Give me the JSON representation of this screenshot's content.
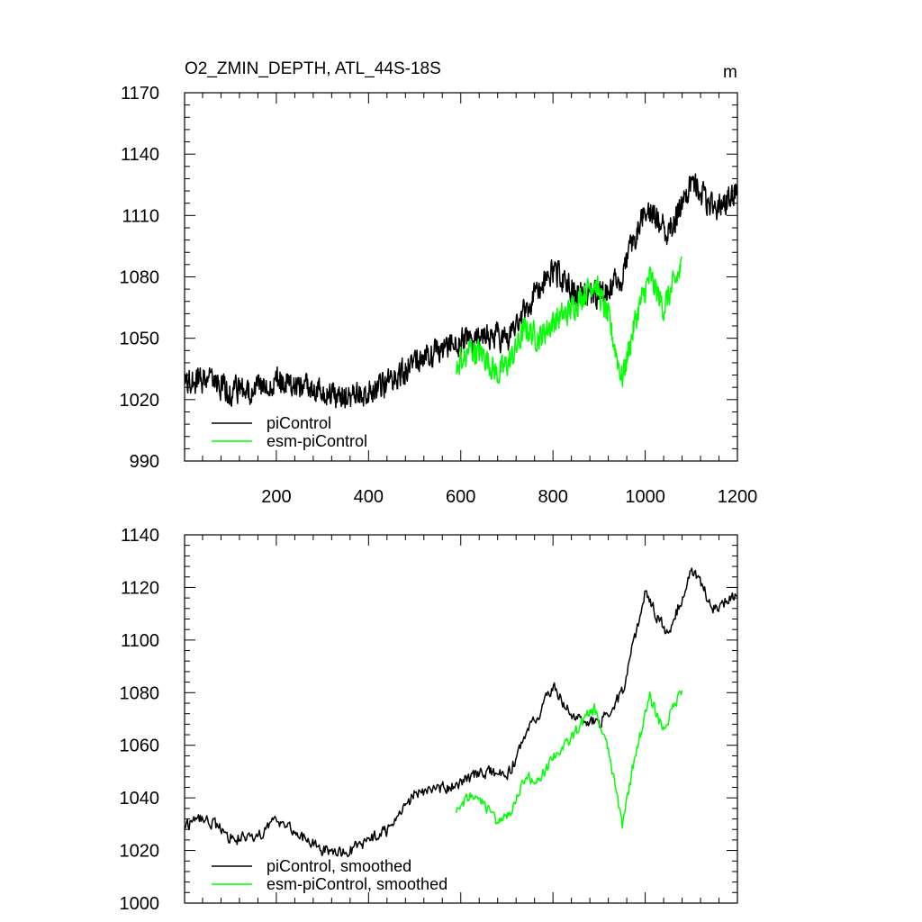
{
  "chart_data": [
    {
      "type": "line",
      "title": "O2_ZMIN_DEPTH, ATL_44S-18S",
      "unit_label": "m",
      "xlim": [
        1,
        1200
      ],
      "ylim": [
        990,
        1170
      ],
      "x_ticks": [
        200,
        400,
        600,
        800,
        1000,
        1200
      ],
      "x_tick_labels": [
        "200",
        "400",
        "600",
        "800",
        "1000",
        "1200"
      ],
      "y_ticks": [
        990,
        1020,
        1050,
        1080,
        1110,
        1140,
        1170
      ],
      "y_tick_labels": [
        "990",
        "1020",
        "1050",
        "1080",
        "1110",
        "1140",
        "1170"
      ],
      "grid": false,
      "legend_position": "bottom-left",
      "series": [
        {
          "name": "piControl",
          "color": "#000000",
          "x": [
            1,
            50,
            100,
            150,
            200,
            250,
            300,
            350,
            400,
            450,
            500,
            550,
            600,
            650,
            700,
            750,
            800,
            850,
            900,
            950,
            1000,
            1050,
            1100,
            1150,
            1200
          ],
          "values": [
            1028,
            1030,
            1024,
            1025,
            1030,
            1026,
            1023,
            1021,
            1024,
            1028,
            1040,
            1044,
            1048,
            1052,
            1050,
            1068,
            1084,
            1072,
            1070,
            1080,
            1115,
            1101,
            1127,
            1113,
            1121
          ]
        },
        {
          "name": "esm-piControl",
          "color": "#00ff00",
          "x": [
            590,
            620,
            650,
            680,
            710,
            740,
            770,
            800,
            830,
            860,
            890,
            920,
            950,
            980,
            1010,
            1040,
            1080
          ],
          "values": [
            1035,
            1045,
            1042,
            1032,
            1040,
            1055,
            1050,
            1058,
            1062,
            1070,
            1078,
            1060,
            1030,
            1060,
            1080,
            1065,
            1085
          ]
        }
      ]
    },
    {
      "type": "line",
      "xlim": [
        1,
        1200
      ],
      "ylim": [
        1000,
        1140
      ],
      "y_ticks": [
        1000,
        1020,
        1040,
        1060,
        1080,
        1100,
        1120,
        1140
      ],
      "y_tick_labels": [
        "1000",
        "1020",
        "1040",
        "1060",
        "1080",
        "1100",
        "1120",
        "1140"
      ],
      "grid": false,
      "legend_position": "bottom-left",
      "series": [
        {
          "name": "piControl, smoothed",
          "color": "#000000",
          "x": [
            1,
            50,
            100,
            150,
            200,
            250,
            300,
            350,
            400,
            450,
            500,
            550,
            600,
            650,
            700,
            750,
            800,
            850,
            900,
            950,
            1000,
            1050,
            1100,
            1150,
            1200
          ],
          "values": [
            1030,
            1032,
            1025,
            1024,
            1032,
            1026,
            1020,
            1019,
            1024,
            1028,
            1042,
            1043,
            1046,
            1050,
            1048,
            1066,
            1082,
            1070,
            1068,
            1080,
            1118,
            1101,
            1127,
            1112,
            1118
          ]
        },
        {
          "name": "esm-piControl, smoothed",
          "color": "#00ff00",
          "x": [
            590,
            620,
            650,
            680,
            710,
            740,
            770,
            800,
            830,
            860,
            890,
            920,
            950,
            980,
            1010,
            1040,
            1080
          ],
          "values": [
            1034,
            1042,
            1038,
            1030,
            1036,
            1048,
            1046,
            1056,
            1060,
            1068,
            1074,
            1058,
            1030,
            1058,
            1078,
            1066,
            1082
          ]
        }
      ]
    }
  ]
}
